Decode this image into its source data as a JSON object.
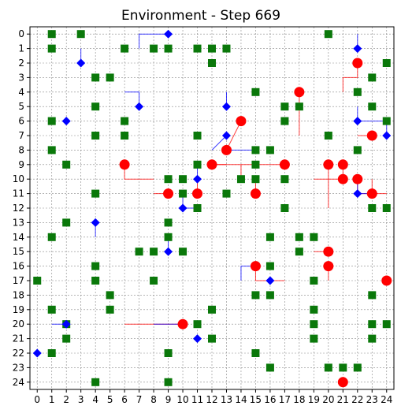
{
  "chart_data": {
    "type": "scatter",
    "title": "Environment - Step 669",
    "grid": true,
    "xlim": [
      -0.5,
      24.5
    ],
    "ylim": [
      -0.5,
      24.5
    ],
    "y_inverted": true,
    "xticks": [
      "0",
      "1",
      "2",
      "3",
      "4",
      "5",
      "6",
      "7",
      "8",
      "9",
      "10",
      "11",
      "12",
      "13",
      "14",
      "15",
      "16",
      "17",
      "18",
      "19",
      "20",
      "21",
      "22",
      "23",
      "24"
    ],
    "yticks": [
      "0",
      "1",
      "2",
      "3",
      "4",
      "5",
      "6",
      "7",
      "8",
      "9",
      "10",
      "11",
      "12",
      "13",
      "14",
      "15",
      "16",
      "17",
      "18",
      "19",
      "20",
      "21",
      "22",
      "23",
      "24"
    ],
    "colors": {
      "obstacle": "#0a780a",
      "agent": "#0000ff",
      "target": "#ff0000",
      "grid": "#888888"
    },
    "obstacles": [
      [
        1,
        0
      ],
      [
        3,
        0
      ],
      [
        20,
        0
      ],
      [
        1,
        1
      ],
      [
        6,
        1
      ],
      [
        8,
        1
      ],
      [
        9,
        1
      ],
      [
        11,
        1
      ],
      [
        12,
        1
      ],
      [
        13,
        1
      ],
      [
        12,
        2
      ],
      [
        24,
        2
      ],
      [
        4,
        3
      ],
      [
        5,
        3
      ],
      [
        23,
        3
      ],
      [
        15,
        4
      ],
      [
        22,
        4
      ],
      [
        4,
        5
      ],
      [
        17,
        5
      ],
      [
        18,
        5
      ],
      [
        23,
        5
      ],
      [
        1,
        6
      ],
      [
        6,
        6
      ],
      [
        17,
        6
      ],
      [
        24,
        6
      ],
      [
        4,
        7
      ],
      [
        6,
        7
      ],
      [
        11,
        7
      ],
      [
        20,
        7
      ],
      [
        1,
        8
      ],
      [
        15,
        8
      ],
      [
        16,
        8
      ],
      [
        22,
        8
      ],
      [
        2,
        9
      ],
      [
        11,
        9
      ],
      [
        15,
        9
      ],
      [
        9,
        10
      ],
      [
        10,
        10
      ],
      [
        14,
        10
      ],
      [
        15,
        10
      ],
      [
        17,
        10
      ],
      [
        4,
        11
      ],
      [
        10,
        11
      ],
      [
        13,
        11
      ],
      [
        11,
        12
      ],
      [
        17,
        12
      ],
      [
        23,
        12
      ],
      [
        24,
        12
      ],
      [
        2,
        13
      ],
      [
        9,
        13
      ],
      [
        1,
        14
      ],
      [
        9,
        14
      ],
      [
        16,
        14
      ],
      [
        18,
        14
      ],
      [
        19,
        14
      ],
      [
        7,
        15
      ],
      [
        8,
        15
      ],
      [
        10,
        15
      ],
      [
        18,
        15
      ],
      [
        4,
        16
      ],
      [
        16,
        16
      ],
      [
        0,
        17
      ],
      [
        4,
        17
      ],
      [
        8,
        17
      ],
      [
        19,
        17
      ],
      [
        5,
        18
      ],
      [
        15,
        18
      ],
      [
        16,
        18
      ],
      [
        23,
        18
      ],
      [
        1,
        19
      ],
      [
        5,
        19
      ],
      [
        12,
        19
      ],
      [
        19,
        19
      ],
      [
        2,
        20
      ],
      [
        11,
        20
      ],
      [
        19,
        20
      ],
      [
        23,
        20
      ],
      [
        24,
        20
      ],
      [
        2,
        21
      ],
      [
        12,
        21
      ],
      [
        19,
        21
      ],
      [
        23,
        21
      ],
      [
        1,
        22
      ],
      [
        9,
        22
      ],
      [
        15,
        22
      ],
      [
        16,
        23
      ],
      [
        20,
        23
      ],
      [
        21,
        23
      ],
      [
        22,
        23
      ],
      [
        4,
        24
      ],
      [
        9,
        24
      ]
    ],
    "agents": [
      [
        9,
        0
      ],
      [
        22,
        1
      ],
      [
        3,
        2
      ],
      [
        7,
        5
      ],
      [
        13,
        5
      ],
      [
        2,
        6
      ],
      [
        22,
        6
      ],
      [
        13,
        7
      ],
      [
        24,
        7
      ],
      [
        11,
        10
      ],
      [
        10,
        12
      ],
      [
        22,
        11
      ],
      [
        4,
        13
      ],
      [
        9,
        15
      ],
      [
        16,
        17
      ],
      [
        2,
        20
      ],
      [
        11,
        21
      ],
      [
        0,
        22
      ]
    ],
    "targets": [
      [
        22,
        2
      ],
      [
        18,
        4
      ],
      [
        14,
        6
      ],
      [
        23,
        7
      ],
      [
        13,
        8
      ],
      [
        6,
        9
      ],
      [
        12,
        9
      ],
      [
        17,
        9
      ],
      [
        20,
        9
      ],
      [
        21,
        9
      ],
      [
        21,
        10
      ],
      [
        22,
        10
      ],
      [
        9,
        11
      ],
      [
        11,
        11
      ],
      [
        15,
        11
      ],
      [
        23,
        11
      ],
      [
        20,
        15
      ],
      [
        15,
        16
      ],
      [
        20,
        16
      ],
      [
        24,
        17
      ],
      [
        10,
        20
      ],
      [
        21,
        24
      ]
    ],
    "agent_paths": [
      [
        [
          7,
          1
        ],
        [
          7,
          0
        ],
        [
          9,
          0
        ]
      ],
      [
        [
          22,
          0
        ],
        [
          22,
          1
        ]
      ],
      [
        [
          3,
          1
        ],
        [
          3,
          2
        ]
      ],
      [
        [
          6,
          4
        ],
        [
          7,
          4
        ],
        [
          7,
          5
        ]
      ],
      [
        [
          13,
          4
        ],
        [
          13,
          5
        ]
      ],
      [
        [
          22,
          5
        ],
        [
          22,
          6
        ],
        [
          24,
          6
        ],
        [
          24,
          7
        ]
      ],
      [
        [
          12,
          8
        ],
        [
          13,
          7
        ]
      ],
      [
        [
          13,
          8
        ],
        [
          15,
          8
        ]
      ],
      [
        [
          11,
          9
        ],
        [
          11,
          10
        ]
      ],
      [
        [
          10,
          11
        ],
        [
          10,
          12
        ],
        [
          11,
          12
        ]
      ],
      [
        [
          22,
          10
        ],
        [
          22,
          11
        ],
        [
          23,
          11
        ]
      ],
      [
        [
          4,
          13
        ],
        [
          4,
          14
        ]
      ],
      [
        [
          9,
          14
        ],
        [
          9,
          15
        ]
      ],
      [
        [
          14,
          17
        ],
        [
          14,
          16
        ],
        [
          15,
          16
        ]
      ],
      [
        [
          1,
          20
        ],
        [
          2,
          20
        ]
      ],
      [
        [
          8,
          20
        ],
        [
          10,
          20
        ]
      ]
    ],
    "target_paths": [
      [
        [
          21,
          4
        ],
        [
          21,
          3
        ],
        [
          22,
          3
        ],
        [
          22,
          2
        ]
      ],
      [
        [
          18,
          4
        ],
        [
          18,
          7
        ]
      ],
      [
        [
          13,
          8
        ],
        [
          14,
          6
        ]
      ],
      [
        [
          22,
          7
        ],
        [
          23,
          7
        ]
      ],
      [
        [
          13,
          9
        ],
        [
          12,
          9
        ]
      ],
      [
        [
          6,
          9
        ],
        [
          6,
          10
        ],
        [
          8,
          10
        ]
      ],
      [
        [
          12,
          9
        ],
        [
          17,
          9
        ]
      ],
      [
        [
          14,
          10
        ],
        [
          14,
          9
        ]
      ],
      [
        [
          20,
          9
        ],
        [
          20,
          12
        ]
      ],
      [
        [
          19,
          10
        ],
        [
          21,
          10
        ]
      ],
      [
        [
          21,
          9
        ],
        [
          21,
          10
        ]
      ],
      [
        [
          22,
          10
        ],
        [
          22,
          11
        ],
        [
          24,
          11
        ]
      ],
      [
        [
          23,
          10
        ],
        [
          23,
          11
        ]
      ],
      [
        [
          8,
          11
        ],
        [
          9,
          11
        ]
      ],
      [
        [
          11,
          10
        ],
        [
          11,
          11
        ]
      ],
      [
        [
          15,
          11
        ],
        [
          15,
          10
        ]
      ],
      [
        [
          19,
          15
        ],
        [
          20,
          15
        ]
      ],
      [
        [
          15,
          16
        ],
        [
          15,
          17
        ],
        [
          17,
          17
        ]
      ],
      [
        [
          6,
          20
        ],
        [
          10,
          20
        ]
      ],
      [
        [
          20,
          16
        ],
        [
          20,
          17
        ]
      ]
    ]
  }
}
